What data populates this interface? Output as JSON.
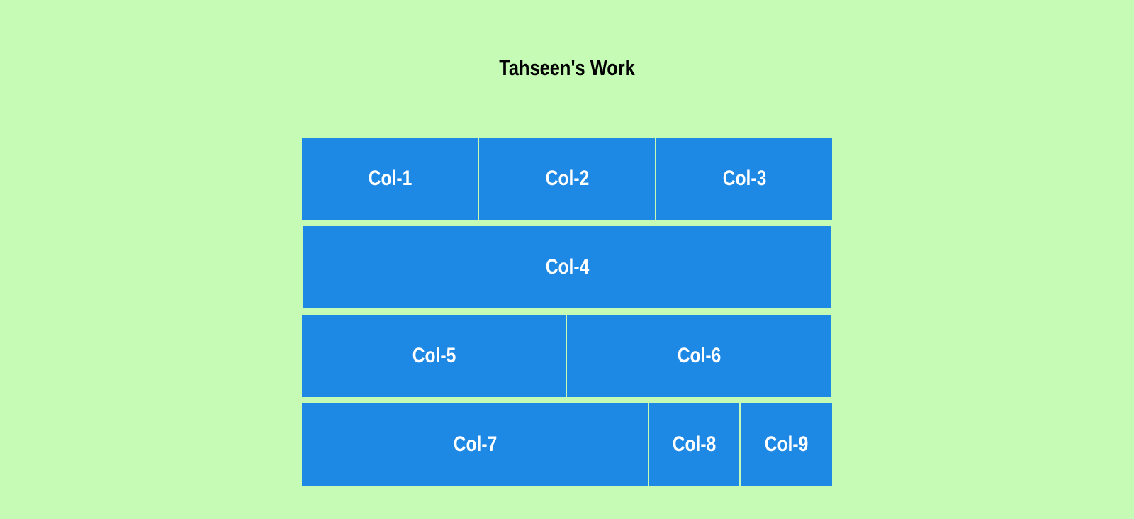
{
  "page": {
    "title": "Tahseen's Work"
  },
  "colors": {
    "background": "#c5fbb5",
    "cell": "#1e88e5",
    "cell_text": "#ffffff",
    "title_text": "#000000"
  },
  "grid": {
    "rows": [
      {
        "cells": [
          {
            "label": "Col-1"
          },
          {
            "label": "Col-2"
          },
          {
            "label": "Col-3"
          }
        ]
      },
      {
        "cells": [
          {
            "label": "Col-4"
          }
        ]
      },
      {
        "cells": [
          {
            "label": "Col-5"
          },
          {
            "label": "Col-6"
          }
        ]
      },
      {
        "cells": [
          {
            "label": "Col-7"
          },
          {
            "label": "Col-8"
          },
          {
            "label": "Col-9"
          }
        ]
      }
    ]
  }
}
